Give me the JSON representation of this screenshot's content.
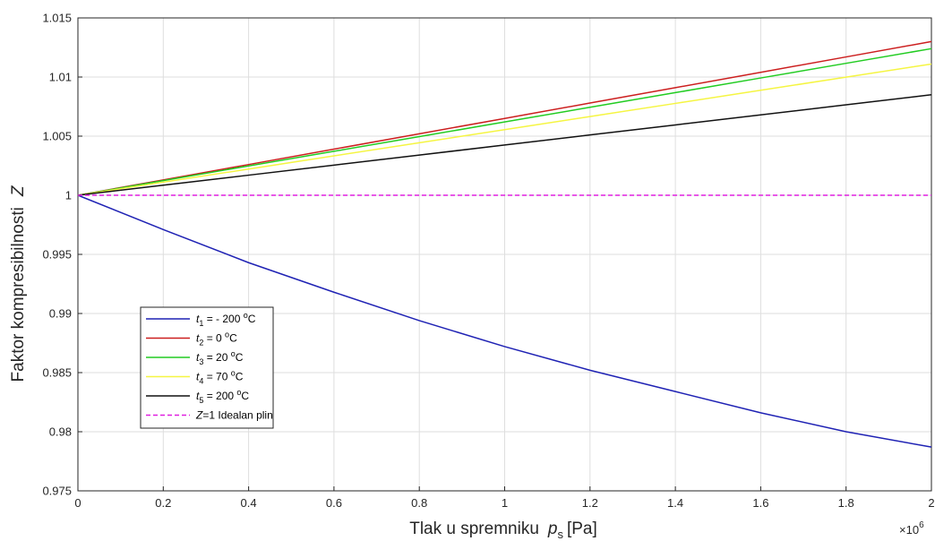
{
  "chart_data": {
    "type": "line",
    "xlabel": {
      "prefix": "Tlak u spremniku",
      "symbol": "p",
      "subscript": "s",
      "unit": "[Pa]"
    },
    "ylabel": {
      "text": "Faktor kompresibilnosti",
      "symbol": "Z"
    },
    "x_multiplier": {
      "base": "×10",
      "exponent": "6"
    },
    "xlim": [
      0,
      2
    ],
    "ylim": [
      0.975,
      1.015
    ],
    "x_ticks": [
      0,
      0.2,
      0.4,
      0.6,
      0.8,
      1,
      1.2,
      1.4,
      1.6,
      1.8,
      2
    ],
    "x_tick_labels": [
      "0",
      "0.2",
      "0.4",
      "0.6",
      "0.8",
      "1",
      "1.2",
      "1.4",
      "1.6",
      "1.8",
      "2"
    ],
    "y_ticks": [
      0.975,
      0.98,
      0.985,
      0.99,
      0.995,
      1,
      1.005,
      1.01,
      1.015
    ],
    "y_tick_labels": [
      "0.975",
      "0.98",
      "0.985",
      "0.99",
      "0.995",
      "1",
      "1.005",
      "1.01",
      "1.015"
    ],
    "grid": true,
    "legend_position": "lower-left",
    "x": [
      0,
      0.2,
      0.4,
      0.6,
      0.8,
      1.0,
      1.2,
      1.4,
      1.6,
      1.8,
      2.0
    ],
    "series": [
      {
        "label": {
          "symbol": "t",
          "sub": "1",
          "value": " = - 200 ",
          "unit_sup": "o",
          "unit": "C"
        },
        "color": "#1f22b4",
        "dash": false,
        "values": [
          1.0,
          0.9971,
          0.9943,
          0.9918,
          0.9894,
          0.9872,
          0.9852,
          0.9834,
          0.9816,
          0.98,
          0.9787
        ]
      },
      {
        "label": {
          "symbol": "t",
          "sub": "2",
          "value": " = 0 ",
          "unit_sup": "o",
          "unit": "C"
        },
        "color": "#cc1f1f",
        "dash": false,
        "values": [
          1.0,
          1.0013,
          1.0026,
          1.0039,
          1.0052,
          1.0065,
          1.0078,
          1.0091,
          1.0104,
          1.0117,
          1.013
        ]
      },
      {
        "label": {
          "symbol": "t",
          "sub": "3",
          "value": " = 20 ",
          "unit_sup": "o",
          "unit": "C"
        },
        "color": "#22cc22",
        "dash": false,
        "values": [
          1.0,
          1.00124,
          1.00248,
          1.00372,
          1.00496,
          1.0062,
          1.00744,
          1.00868,
          1.00992,
          1.01116,
          1.0124
        ]
      },
      {
        "label": {
          "symbol": "t",
          "sub": "4",
          "value": " = 70 ",
          "unit_sup": "o",
          "unit": "C"
        },
        "color": "#f5f542",
        "dash": false,
        "values": [
          1.0,
          1.00111,
          1.00222,
          1.00333,
          1.00444,
          1.00555,
          1.00666,
          1.00777,
          1.00888,
          1.00999,
          1.0111
        ]
      },
      {
        "label": {
          "symbol": "t",
          "sub": "5",
          "value": " = 200 ",
          "unit_sup": "o",
          "unit": "C"
        },
        "color": "#111111",
        "dash": false,
        "values": [
          1.0,
          1.00085,
          1.0017,
          1.00255,
          1.0034,
          1.00425,
          1.0051,
          1.00595,
          1.0068,
          1.00765,
          1.0085
        ]
      },
      {
        "label": {
          "symbol": "Z",
          "sub": "",
          "value": "=1 Idealan plin",
          "unit_sup": "",
          "unit": ""
        },
        "color": "#e020e0",
        "dash": true,
        "values": [
          1.0,
          1.0,
          1.0,
          1.0,
          1.0,
          1.0,
          1.0,
          1.0,
          1.0,
          1.0,
          1.0
        ]
      }
    ]
  }
}
